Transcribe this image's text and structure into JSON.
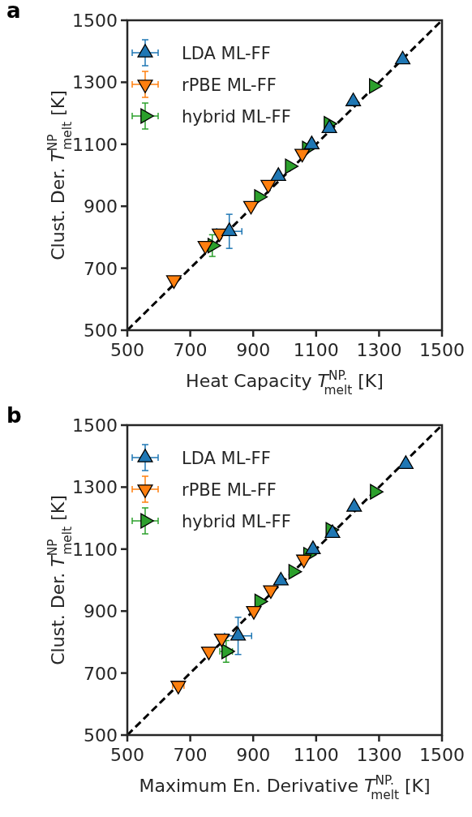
{
  "chart_data": [
    {
      "type": "scatter",
      "title": "a",
      "xlabel": "Heat Capacity T$^{NP.}$$_{melt}$ [K]",
      "ylabel": "Clust. Der. T$^{NP}$$_{melt}$ [K]",
      "xlim": [
        500,
        1500
      ],
      "ylim": [
        500,
        1500
      ],
      "xticks": [
        500,
        700,
        900,
        1100,
        1300,
        1500
      ],
      "yticks": [
        500,
        700,
        900,
        1100,
        1300,
        1500
      ],
      "grid": false,
      "legend": "top left",
      "series": [
        {
          "name": "LDA ML-FF",
          "color": "#1f77b4",
          "marker": "triangle",
          "x": [
            824,
            980,
            1086,
            1142,
            1218,
            1375
          ],
          "values": [
            819,
            997,
            1099,
            1151,
            1238,
            1373
          ],
          "xerrors": [
            40,
            null,
            null,
            null,
            null,
            null
          ],
          "errors": [
            55,
            null,
            null,
            null,
            null,
            null
          ]
        },
        {
          "name": "rPBE ML-FF",
          "color": "#ff7f0e",
          "marker": "triangle",
          "x": [
            648,
            748,
            793,
            893,
            948,
            1056
          ],
          "values": [
            662,
            773,
            813,
            902,
            970,
            1070
          ]
        },
        {
          "name": "hybrid ML-FF",
          "color": "#2ca02c",
          "marker": "triangle",
          "x": [
            770,
            918,
            1016,
            1070,
            1139,
            1283
          ],
          "values": [
            773,
            930,
            1029,
            1086,
            1166,
            1288
          ],
          "errors": [
            35,
            null,
            null,
            null,
            null,
            null
          ]
        },
        {
          "type": "line",
          "color": "#000000",
          "line_style": "dashed",
          "marker": "none",
          "x": [
            500,
            1500
          ],
          "values": [
            500,
            1500
          ]
        }
      ]
    },
    {
      "type": "scatter",
      "title": "b",
      "xlabel": "Maximum En. Derivative T$^{NP.}$$_{melt}$ [K]",
      "ylabel": "Clust. Der. T$^{NP}$$_{melt}$ [K]",
      "xlim": [
        500,
        1500
      ],
      "ylim": [
        500,
        1500
      ],
      "xticks": [
        500,
        700,
        900,
        1100,
        1300,
        1500
      ],
      "yticks": [
        500,
        700,
        900,
        1100,
        1300,
        1500
      ],
      "grid": false,
      "legend": "top left",
      "series": [
        {
          "name": "LDA ML-FF",
          "color": "#1f77b4",
          "marker": "triangle",
          "x": [
            852,
            988,
            1090,
            1152,
            1221,
            1385
          ],
          "values": [
            820,
            998,
            1099,
            1151,
            1236,
            1374
          ],
          "xerrors": [
            43,
            null,
            null,
            null,
            null,
            null
          ],
          "errors": [
            60,
            null,
            null,
            null,
            null,
            null
          ]
        },
        {
          "name": "rPBE ML-FF",
          "color": "#ff7f0e",
          "marker": "triangle",
          "x": [
            662,
            759,
            800,
            902,
            956,
            1061
          ],
          "values": [
            660,
            770,
            812,
            901,
            968,
            1067
          ],
          "xerrors": [
            18,
            null,
            null,
            null,
            null,
            null
          ]
        },
        {
          "name": "hybrid ML-FF",
          "color": "#2ca02c",
          "marker": "triangle",
          "x": [
            814,
            919,
            1027,
            1074,
            1145,
            1286
          ],
          "values": [
            770,
            931,
            1027,
            1082,
            1162,
            1285
          ],
          "xerrors": [
            20,
            null,
            null,
            null,
            null,
            null
          ],
          "errors": [
            35,
            null,
            null,
            null,
            null,
            null
          ]
        },
        {
          "type": "line",
          "color": "#000000",
          "line_style": "dashed",
          "marker": "none",
          "x": [
            500,
            1500
          ],
          "values": [
            500,
            1500
          ]
        }
      ]
    }
  ]
}
